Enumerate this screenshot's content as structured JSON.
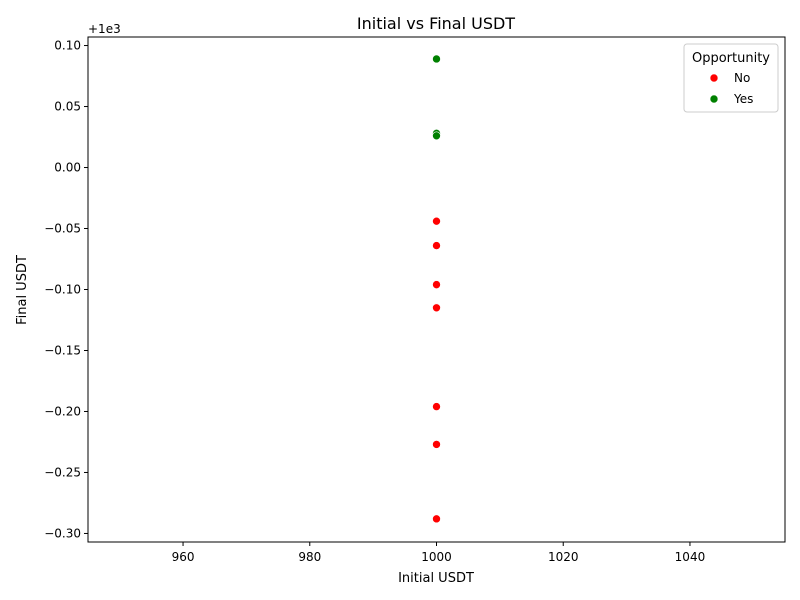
{
  "chart_data": {
    "type": "scatter",
    "title": "Initial vs Final USDT",
    "xlabel": "Initial USDT",
    "ylabel": "Final USDT",
    "y_offset_label": "+1e3",
    "xlim": [
      945,
      1055
    ],
    "ylim": [
      -0.307,
      0.107
    ],
    "x_ticks": [
      960,
      980,
      1000,
      1020,
      1040
    ],
    "y_ticks": [
      0.1,
      0.05,
      0.0,
      -0.05,
      -0.1,
      -0.15,
      -0.2,
      -0.25,
      -0.3
    ],
    "y_tick_labels": [
      "0.10",
      "0.05",
      "0.00",
      "−0.05",
      "−0.10",
      "−0.15",
      "−0.20",
      "−0.25",
      "−0.30"
    ],
    "legend": {
      "title": "Opportunity",
      "placement": "top-right",
      "entries": [
        {
          "label": "No",
          "color": "#ff0000"
        },
        {
          "label": "Yes",
          "color": "#008000"
        }
      ]
    },
    "series": [
      {
        "name": "No",
        "color": "#ff0000",
        "points": [
          {
            "x": 1000,
            "y": -0.044
          },
          {
            "x": 1000,
            "y": -0.064
          },
          {
            "x": 1000,
            "y": -0.096
          },
          {
            "x": 1000,
            "y": -0.115
          },
          {
            "x": 1000,
            "y": -0.196
          },
          {
            "x": 1000,
            "y": -0.227
          },
          {
            "x": 1000,
            "y": -0.288
          }
        ]
      },
      {
        "name": "Yes",
        "color": "#008000",
        "points": [
          {
            "x": 1000,
            "y": 0.089
          },
          {
            "x": 1000,
            "y": 0.028
          },
          {
            "x": 1000,
            "y": 0.026
          }
        ]
      }
    ],
    "grid": false
  }
}
